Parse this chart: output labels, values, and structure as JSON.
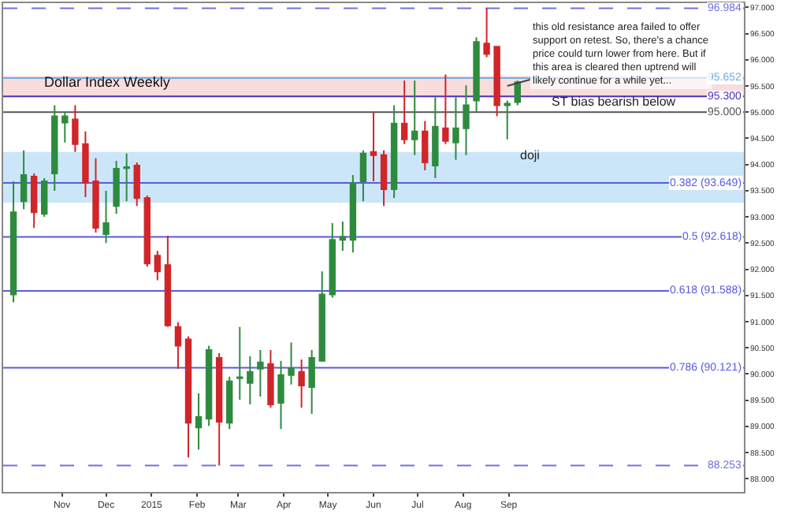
{
  "chart_data": {
    "type": "candlestick",
    "title": "Dollar Index Weekly",
    "x": [
      "2014-09-29",
      "2014-10-06",
      "2014-10-13",
      "2014-10-20",
      "2014-10-27",
      "2014-11-03",
      "2014-11-10",
      "2014-11-17",
      "2014-11-24",
      "2014-12-01",
      "2014-12-08",
      "2014-12-15",
      "2014-12-22",
      "2014-12-29",
      "2015-01-05",
      "2015-01-12",
      "2015-01-19",
      "2015-01-26",
      "2015-02-02",
      "2015-02-09",
      "2015-02-16",
      "2015-02-23",
      "2015-03-02",
      "2015-03-09",
      "2015-03-16",
      "2015-03-23",
      "2015-03-30",
      "2015-04-06",
      "2015-04-13",
      "2015-04-20",
      "2015-04-27",
      "2015-05-04",
      "2015-05-11",
      "2015-05-18",
      "2015-05-25",
      "2015-06-01",
      "2015-06-08",
      "2015-06-15",
      "2015-06-22",
      "2015-06-29",
      "2015-07-06",
      "2015-07-13",
      "2015-07-20",
      "2015-07-27",
      "2015-08-03",
      "2015-08-10",
      "2015-08-17",
      "2015-08-24",
      "2015-08-31",
      "2015-09-07"
    ],
    "ohlc": [
      [
        91.52,
        93.68,
        91.37,
        93.09
      ],
      [
        93.3,
        94.27,
        93.15,
        93.8
      ],
      [
        93.77,
        93.83,
        92.79,
        93.09
      ],
      [
        93.06,
        93.74,
        93.0,
        93.68
      ],
      [
        93.83,
        95.13,
        93.5,
        94.92
      ],
      [
        94.8,
        95.01,
        94.42,
        94.92
      ],
      [
        94.86,
        95.13,
        94.24,
        94.39
      ],
      [
        94.39,
        94.63,
        93.38,
        93.65
      ],
      [
        93.68,
        94.12,
        92.7,
        92.79
      ],
      [
        92.67,
        93.5,
        92.5,
        92.88
      ],
      [
        93.21,
        94.07,
        93.06,
        93.92
      ],
      [
        93.93,
        94.21,
        93.3,
        93.95
      ],
      [
        93.98,
        94.04,
        93.21,
        93.36
      ],
      [
        93.36,
        93.41,
        92.05,
        92.11
      ],
      [
        92.26,
        92.35,
        91.79,
        91.96
      ],
      [
        92.08,
        92.64,
        90.9,
        90.93
      ],
      [
        90.9,
        90.99,
        90.1,
        90.54
      ],
      [
        90.66,
        90.72,
        88.41,
        89.07
      ],
      [
        88.98,
        89.63,
        88.56,
        89.18
      ],
      [
        89.15,
        90.54,
        89.01,
        90.46
      ],
      [
        90.31,
        90.4,
        88.253,
        89.09
      ],
      [
        89.07,
        89.95,
        88.95,
        89.86
      ],
      [
        89.92,
        90.9,
        89.51,
        89.94
      ],
      [
        89.83,
        90.34,
        89.42,
        90.04
      ],
      [
        90.1,
        90.46,
        89.57,
        90.22
      ],
      [
        90.19,
        90.46,
        89.36,
        89.42
      ],
      [
        89.45,
        90.25,
        88.95,
        89.98
      ],
      [
        89.98,
        90.6,
        89.8,
        90.1
      ],
      [
        90.04,
        90.28,
        89.36,
        89.78
      ],
      [
        89.75,
        90.46,
        89.24,
        90.31
      ],
      [
        90.25,
        91.96,
        90.25,
        91.52
      ],
      [
        91.52,
        92.88,
        91.46,
        92.56
      ],
      [
        92.56,
        92.91,
        92.35,
        92.62
      ],
      [
        92.56,
        93.8,
        92.32,
        93.65
      ],
      [
        93.68,
        94.27,
        93.3,
        94.21
      ],
      [
        94.24,
        95.01,
        93.68,
        94.18
      ],
      [
        94.18,
        94.27,
        93.21,
        93.53
      ],
      [
        93.53,
        95.13,
        93.36,
        94.78
      ],
      [
        94.78,
        95.6,
        94.39,
        94.48
      ],
      [
        94.48,
        95.6,
        94.18,
        94.63
      ],
      [
        94.63,
        94.83,
        93.89,
        94.04
      ],
      [
        93.98,
        95.28,
        93.74,
        94.72
      ],
      [
        94.69,
        95.72,
        94.39,
        94.45
      ],
      [
        94.42,
        95.28,
        94.09,
        94.69
      ],
      [
        94.69,
        95.51,
        94.18,
        95.13
      ],
      [
        95.22,
        96.43,
        95.01,
        96.34
      ],
      [
        96.31,
        96.984,
        96.05,
        96.11
      ],
      [
        96.25,
        96.25,
        94.92,
        95.13
      ],
      [
        95.13,
        95.22,
        94.48,
        95.16
      ],
      [
        95.19,
        95.6,
        95.13,
        95.57
      ]
    ],
    "colors": [
      "#2e8b3e",
      "#2e8b3e",
      "#d0262a",
      "#2e8b3e",
      "#2e8b3e",
      "#2e8b3e",
      "#d0262a",
      "#d0262a",
      "#d0262a",
      "#2e8b3e",
      "#2e8b3e",
      "#2e8b3e",
      "#d0262a",
      "#d0262a",
      "#d0262a",
      "#d0262a",
      "#d0262a",
      "#d0262a",
      "#2e8b3e",
      "#2e8b3e",
      "#d0262a",
      "#2e8b3e",
      "#2e8b3e",
      "#2e8b3e",
      "#2e8b3e",
      "#d0262a",
      "#2e8b3e",
      "#2e8b3e",
      "#d0262a",
      "#2e8b3e",
      "#2e8b3e",
      "#2e8b3e",
      "#2e8b3e",
      "#2e8b3e",
      "#2e8b3e",
      "#d0262a",
      "#d0262a",
      "#2e8b3e",
      "#d0262a",
      "#2e8b3e",
      "#d0262a",
      "#2e8b3e",
      "#d0262a",
      "#2e8b3e",
      "#2e8b3e",
      "#2e8b3e",
      "#d0262a",
      "#d0262a",
      "#2e8b3e",
      "#2e8b3e"
    ],
    "xlim": [
      "2014-09-22",
      "2016-02-08"
    ],
    "xticks": [
      {
        "value": "2014-11-01",
        "label": "Nov"
      },
      {
        "value": "2014-12-01",
        "label": "Dec"
      },
      {
        "value": "2015-01-01",
        "label": "2015"
      },
      {
        "value": "2015-02-01",
        "label": "Feb"
      },
      {
        "value": "2015-03-01",
        "label": "Mar"
      },
      {
        "value": "2015-04-01",
        "label": "Apr"
      },
      {
        "value": "2015-05-01",
        "label": "May"
      },
      {
        "value": "2015-06-01",
        "label": "Jun"
      },
      {
        "value": "2015-07-01",
        "label": "Jul"
      },
      {
        "value": "2015-08-01",
        "label": "Aug"
      },
      {
        "value": "2015-09-01",
        "label": "Sep"
      }
    ],
    "ylim": [
      87.75,
      97.08
    ],
    "yticks": [
      {
        "value": 88,
        "label": "88.000"
      },
      {
        "value": 88.5,
        "label": "88.500"
      },
      {
        "value": 89,
        "label": "89.000"
      },
      {
        "value": 89.5,
        "label": "89.500"
      },
      {
        "value": 90,
        "label": "90.000"
      },
      {
        "value": 90.5,
        "label": "90.500"
      },
      {
        "value": 91,
        "label": "91.000"
      },
      {
        "value": 91.5,
        "label": "91.500"
      },
      {
        "value": 92,
        "label": "92.000"
      },
      {
        "value": 92.5,
        "label": "92.500"
      },
      {
        "value": 93,
        "label": "93.000"
      },
      {
        "value": 93.5,
        "label": "93.500"
      },
      {
        "value": 94,
        "label": "94.000"
      },
      {
        "value": 94.5,
        "label": "94.500"
      },
      {
        "value": 95,
        "label": "95.000"
      },
      {
        "value": 95.5,
        "label": "95.500"
      },
      {
        "value": 96,
        "label": "96.000"
      },
      {
        "value": 96.5,
        "label": "96.500"
      },
      {
        "value": 97,
        "label": "97.000"
      }
    ],
    "grid": false,
    "bands": [
      {
        "axis": "y",
        "from": 93.27,
        "to": 94.24,
        "color": "#bfe0f8"
      },
      {
        "axis": "y",
        "from": 95.28,
        "to": 95.69,
        "color": "#f7d4d4"
      }
    ],
    "ref_lines": [
      {
        "axis": "y",
        "value": 96.984,
        "label": "96.984",
        "color": "#7070e0",
        "line_style": "dashed"
      },
      {
        "axis": "y",
        "value": 95.652,
        "label": "95.652",
        "color": "#6aaee8",
        "line_style": "solid"
      },
      {
        "axis": "y",
        "value": 95.3,
        "label": "95.300",
        "color": "#4a30c0",
        "line_style": "solid"
      },
      {
        "axis": "y",
        "value": 95.0,
        "label": "95.000",
        "color": "#555555",
        "line_style": "solid"
      },
      {
        "axis": "y",
        "value": 93.649,
        "label": "0.382 (93.649)",
        "color": "#5a5ae0",
        "line_style": "solid"
      },
      {
        "axis": "y",
        "value": 92.618,
        "label": "0.5 (92.618)",
        "color": "#5a5ae0",
        "line_style": "solid"
      },
      {
        "axis": "y",
        "value": 91.588,
        "label": "0.618 (91.588)",
        "color": "#5a5ae0",
        "line_style": "solid"
      },
      {
        "axis": "y",
        "value": 90.121,
        "label": "0.786 (90.121)",
        "color": "#5a5ae0",
        "line_style": "solid"
      },
      {
        "axis": "y",
        "value": 88.253,
        "label": "88.253",
        "color": "#7070e0",
        "line_style": "dashed"
      }
    ],
    "annotations": [
      {
        "text": "this old resistance area failed to offer support on retest. So, there's a chance price could turn lower from here. But if this area is cleared then uptrend will likely continue for a while yet...",
        "x": "2015-08-31",
        "y": 95.5
      },
      {
        "text": "ST bias bearish below",
        "x": "2015-09-07",
        "y": 95.0
      },
      {
        "text": "doji",
        "x": "2015-08-31",
        "y": 94.48
      }
    ]
  }
}
